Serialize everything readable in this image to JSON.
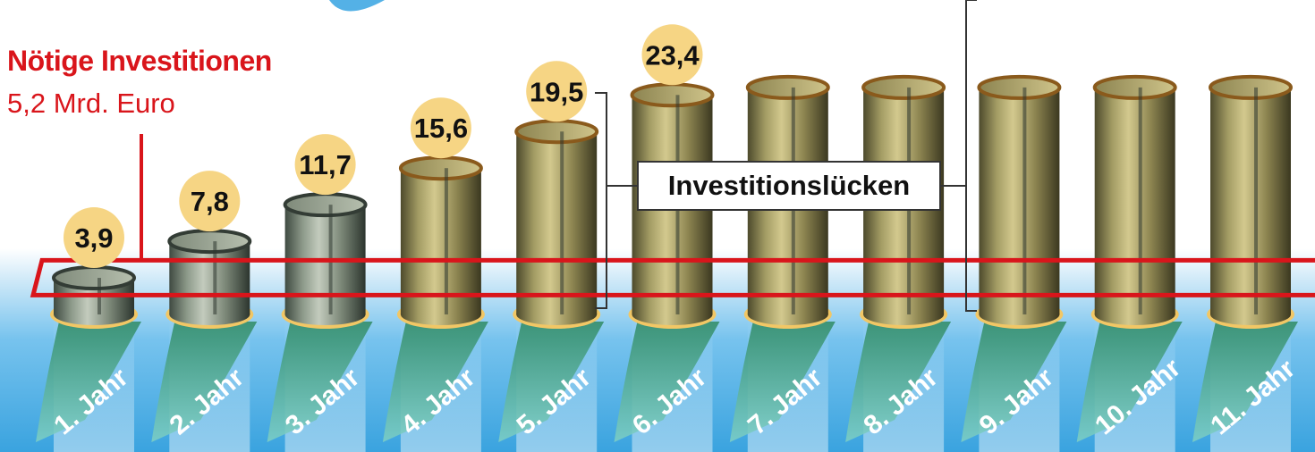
{
  "header": {
    "title": "Nötige Investitionen",
    "subtitle": "5,2 Mrd. Euro"
  },
  "annotation": {
    "gap_label": "Investitionslücken"
  },
  "colors": {
    "accent_red": "#d9151b",
    "badge": "#f6d584",
    "water": "#56b4e6"
  },
  "chart_data": {
    "type": "bar",
    "categories": [
      "1. Jahr",
      "2. Jahr",
      "3. Jahr",
      "4. Jahr",
      "5. Jahr",
      "6. Jahr",
      "7. Jahr",
      "8. Jahr",
      "9. Jahr",
      "10. Jahr",
      "11. Jahr"
    ],
    "values": [
      3.9,
      7.8,
      11.7,
      15.6,
      19.5,
      23.4,
      null,
      null,
      null,
      null,
      null
    ],
    "value_labels": [
      "3,9",
      "7,8",
      "11,7",
      "15,6",
      "19,5",
      "23,4",
      "",
      "",
      "",
      "",
      ""
    ],
    "threshold": 5.2
  }
}
